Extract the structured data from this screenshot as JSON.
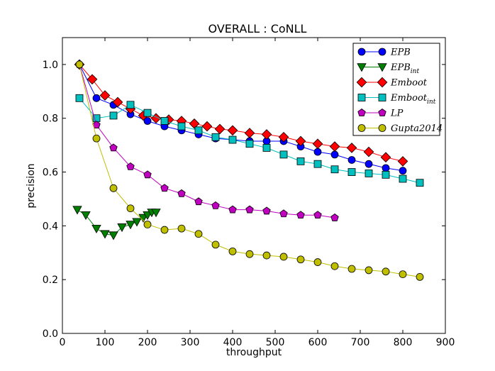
{
  "chart_data": {
    "type": "line",
    "title": "OVERALL : CoNLL",
    "xlabel": "throughput",
    "ylabel": "precision",
    "xlim": [
      0,
      900
    ],
    "ylim": [
      0.0,
      1.1
    ],
    "xticks": [
      0,
      100,
      200,
      300,
      400,
      500,
      600,
      700,
      800,
      900
    ],
    "yticks": [
      0.0,
      0.2,
      0.4,
      0.6,
      0.8,
      1.0
    ],
    "xtick_labels": [
      "0",
      "100",
      "200",
      "300",
      "400",
      "500",
      "600",
      "700",
      "800",
      "900"
    ],
    "ytick_labels": [
      "0.0",
      "0.2",
      "0.4",
      "0.6",
      "0.8",
      "1.0"
    ],
    "legend_position": "top-right",
    "series": [
      {
        "name": "EPB",
        "sub": "",
        "color": "#0000ff",
        "marker": "circle",
        "x": [
          40,
          80,
          120,
          160,
          200,
          240,
          280,
          320,
          360,
          400,
          440,
          480,
          520,
          560,
          600,
          640,
          680,
          720,
          760,
          800
        ],
        "y": [
          1.0,
          0.875,
          0.85,
          0.815,
          0.79,
          0.77,
          0.755,
          0.74,
          0.725,
          0.72,
          0.715,
          0.715,
          0.715,
          0.695,
          0.675,
          0.665,
          0.645,
          0.63,
          0.615,
          0.605
        ]
      },
      {
        "name": "EPB",
        "sub": "int",
        "color": "#008000",
        "marker": "triangle-down",
        "x": [
          35,
          55,
          80,
          100,
          120,
          140,
          160,
          175,
          190,
          200,
          210,
          220
        ],
        "y": [
          0.46,
          0.44,
          0.39,
          0.37,
          0.365,
          0.395,
          0.405,
          0.415,
          0.43,
          0.44,
          0.45,
          0.45
        ]
      },
      {
        "name": "Emboot",
        "sub": "",
        "color": "#ff0000",
        "marker": "diamond",
        "x": [
          40,
          70,
          100,
          130,
          160,
          190,
          220,
          250,
          280,
          310,
          340,
          370,
          400,
          440,
          480,
          520,
          560,
          600,
          640,
          680,
          720,
          760,
          800
        ],
        "y": [
          1.0,
          0.945,
          0.885,
          0.86,
          0.835,
          0.81,
          0.8,
          0.795,
          0.79,
          0.78,
          0.77,
          0.76,
          0.755,
          0.745,
          0.74,
          0.73,
          0.715,
          0.705,
          0.695,
          0.69,
          0.675,
          0.655,
          0.64
        ]
      },
      {
        "name": "Emboot",
        "sub": "int",
        "color": "#00bfbf",
        "marker": "square",
        "x": [
          40,
          80,
          120,
          160,
          200,
          240,
          280,
          320,
          360,
          400,
          440,
          480,
          520,
          560,
          600,
          640,
          680,
          720,
          760,
          800,
          840
        ],
        "y": [
          0.875,
          0.8,
          0.81,
          0.85,
          0.82,
          0.79,
          0.77,
          0.755,
          0.73,
          0.72,
          0.705,
          0.69,
          0.665,
          0.64,
          0.63,
          0.61,
          0.6,
          0.595,
          0.59,
          0.575,
          0.56
        ]
      },
      {
        "name": "LP",
        "sub": "",
        "color": "#bf00bf",
        "marker": "pentagon",
        "x": [
          40,
          80,
          120,
          160,
          200,
          240,
          280,
          320,
          360,
          400,
          440,
          480,
          520,
          560,
          600,
          640
        ],
        "y": [
          1.0,
          0.775,
          0.69,
          0.62,
          0.59,
          0.54,
          0.52,
          0.49,
          0.475,
          0.46,
          0.46,
          0.455,
          0.445,
          0.44,
          0.44,
          0.43
        ]
      },
      {
        "name": "Gupta2014",
        "sub": "",
        "color": "#bfbf00",
        "marker": "circle",
        "x": [
          40,
          80,
          120,
          160,
          200,
          240,
          280,
          320,
          360,
          400,
          440,
          480,
          520,
          560,
          600,
          640,
          680,
          720,
          760,
          800,
          840
        ],
        "y": [
          1.0,
          0.725,
          0.54,
          0.465,
          0.405,
          0.385,
          0.39,
          0.37,
          0.33,
          0.305,
          0.295,
          0.29,
          0.285,
          0.275,
          0.265,
          0.25,
          0.24,
          0.235,
          0.23,
          0.22,
          0.21
        ]
      }
    ]
  }
}
